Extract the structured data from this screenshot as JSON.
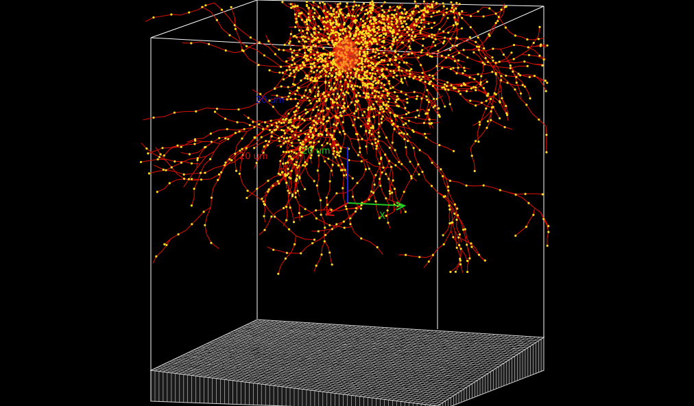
{
  "viewer": {
    "background_color": "#000000",
    "box_color": "#ffffff",
    "mesh_color": "#d8d8d8",
    "dendrite_color": "#dd1100",
    "node_color": "#ffdd22"
  },
  "scale_bars": {
    "z_label": "20 um",
    "z_color": "#1010cc",
    "y_label": "20 um",
    "y_color": "#dd1111",
    "x_label": "20 um",
    "x_color": "#22cc22"
  },
  "axis_gizmo": {
    "x_label": "X",
    "x_color": "#22cc22",
    "y_color": "#dd1111",
    "z_color": "#2020dd"
  },
  "icons": {
    "neuron": "neuron-reconstruction-icon",
    "mesh": "substrate-mesh-icon"
  }
}
